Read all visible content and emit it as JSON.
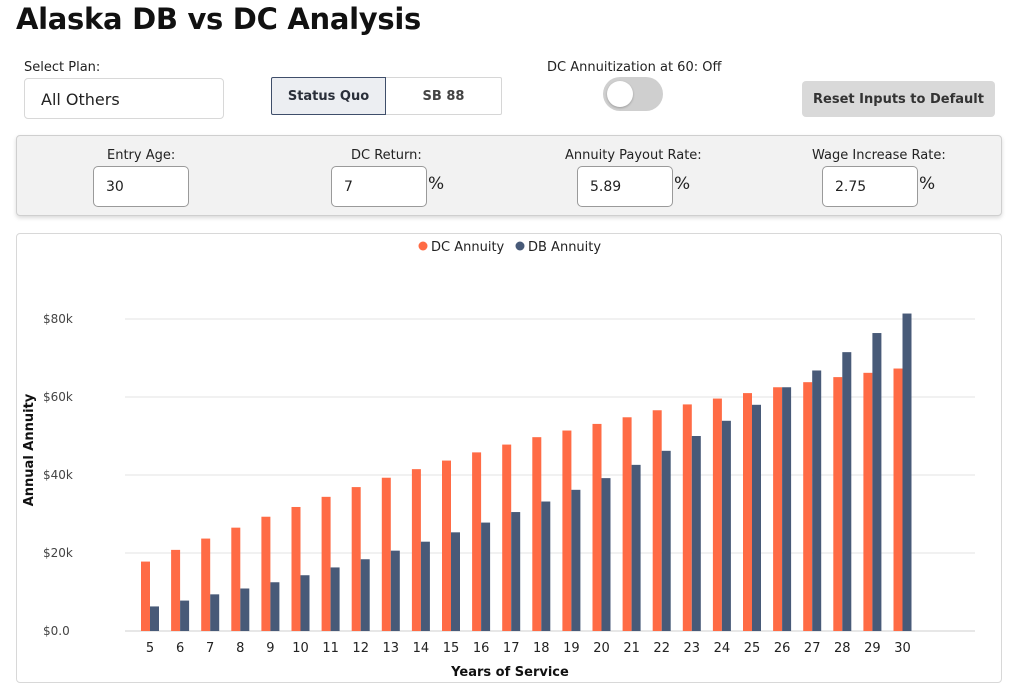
{
  "page": {
    "title": "Alaska DB vs DC Analysis"
  },
  "controls": {
    "select_plan_label": "Select Plan:",
    "select_plan_value": "All Others",
    "scenario_tabs": [
      "Status Quo",
      "SB 88"
    ],
    "active_scenario": "Status Quo",
    "annuitization_label": "DC Annuitization at 60: Off",
    "annuitization_on": false,
    "reset_label": "Reset Inputs to Default"
  },
  "inputs": {
    "entry_age": {
      "label": "Entry Age:",
      "value": "30"
    },
    "dc_return": {
      "label": "DC Return:",
      "value": "7",
      "unit": "%"
    },
    "annuity_payout": {
      "label": "Annuity Payout Rate:",
      "value": "5.89",
      "unit": "%"
    },
    "wage_increase": {
      "label": "Wage Increase Rate:",
      "value": "2.75",
      "unit": "%"
    }
  },
  "colors": {
    "dc": "#ff6b45",
    "db": "#485a78"
  },
  "chart_data": {
    "type": "bar",
    "xlabel": "Years of Service",
    "ylabel": "Annual Annuity",
    "ylim": [
      0,
      80000
    ],
    "yticks": [
      0,
      20000,
      40000,
      60000,
      80000
    ],
    "ytick_labels": [
      "$0.0",
      "$20k",
      "$40k",
      "$60k",
      "$80k"
    ],
    "legend_position": "top-center",
    "grid": true,
    "categories": [
      "5",
      "6",
      "7",
      "8",
      "9",
      "10",
      "11",
      "12",
      "13",
      "14",
      "15",
      "16",
      "17",
      "18",
      "19",
      "20",
      "21",
      "22",
      "23",
      "24",
      "25",
      "26",
      "27",
      "28",
      "29",
      "30"
    ],
    "series": [
      {
        "name": "DC Annuity",
        "values": [
          17800,
          20800,
          23700,
          26500,
          29300,
          31800,
          34400,
          36900,
          39300,
          41500,
          43700,
          45800,
          47800,
          49700,
          51400,
          53100,
          54800,
          56600,
          58100,
          59600,
          61000,
          62500,
          63800,
          65100,
          66200,
          67300
        ]
      },
      {
        "name": "DB Annuity",
        "values": [
          6300,
          7800,
          9400,
          10900,
          12500,
          14300,
          16300,
          18400,
          20600,
          22900,
          25300,
          27800,
          30500,
          33200,
          36200,
          39200,
          42600,
          46200,
          50000,
          53900,
          58000,
          62500,
          66800,
          71500,
          76400,
          81400
        ]
      }
    ]
  }
}
